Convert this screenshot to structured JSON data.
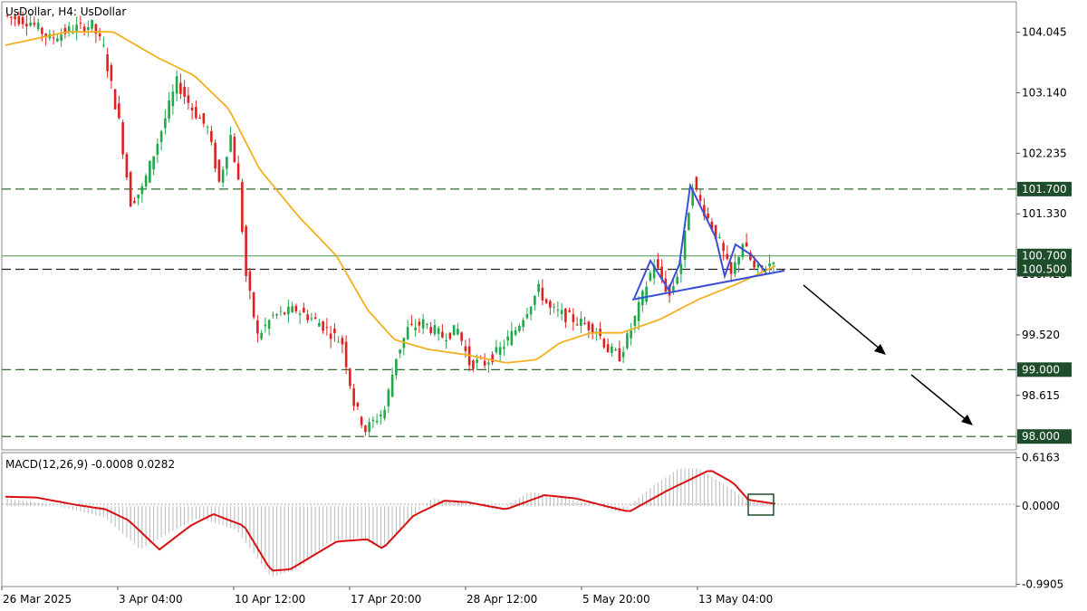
{
  "header": {
    "title": "UsDollar, H4:  UsDollar"
  },
  "macd_header": "MACD(12,26,9) -0.0008 0.0282",
  "colors": {
    "up_candle": "#1fa84a",
    "down_candle": "#e02020",
    "ma_line": "#f2b01e",
    "macd_line": "#d81010",
    "hist": "#b8b8b8",
    "level_line": "#2e6b2e",
    "badge": "#1d4d2a",
    "pattern": "#3a4fd8",
    "arrow": "#000000"
  },
  "chart_data": [
    {
      "type": "candlestick",
      "title": "UsDollar, H4:  UsDollar",
      "y_ticks": [
        "104.045",
        "103.140",
        "102.235",
        "101.330",
        "100.425",
        "99.520",
        "98.615"
      ],
      "ylim": [
        97.8,
        104.5
      ],
      "x_ticks": [
        "26 Mar 2025",
        "3 Apr 04:00",
        "10 Apr 12:00",
        "17 Apr 20:00",
        "28 Apr 12:00",
        "5 May 20:00",
        "13 May 04:00"
      ],
      "price_path": [
        {
          "t": 0.0,
          "v": 104.3
        },
        {
          "t": 0.035,
          "v": 104.2
        },
        {
          "t": 0.06,
          "v": 103.95
        },
        {
          "t": 0.09,
          "v": 104.1
        },
        {
          "t": 0.115,
          "v": 104.15
        },
        {
          "t": 0.13,
          "v": 103.8
        },
        {
          "t": 0.15,
          "v": 102.7
        },
        {
          "t": 0.165,
          "v": 101.5
        },
        {
          "t": 0.18,
          "v": 101.7
        },
        {
          "t": 0.2,
          "v": 102.4
        },
        {
          "t": 0.225,
          "v": 103.3
        },
        {
          "t": 0.245,
          "v": 102.9
        },
        {
          "t": 0.265,
          "v": 102.6
        },
        {
          "t": 0.28,
          "v": 101.8
        },
        {
          "t": 0.295,
          "v": 102.5
        },
        {
          "t": 0.305,
          "v": 101.8
        },
        {
          "t": 0.315,
          "v": 100.4
        },
        {
          "t": 0.33,
          "v": 99.5
        },
        {
          "t": 0.35,
          "v": 99.8
        },
        {
          "t": 0.38,
          "v": 99.9
        },
        {
          "t": 0.41,
          "v": 99.7
        },
        {
          "t": 0.44,
          "v": 99.4
        },
        {
          "t": 0.455,
          "v": 98.5
        },
        {
          "t": 0.47,
          "v": 98.1
        },
        {
          "t": 0.495,
          "v": 98.4
        },
        {
          "t": 0.51,
          "v": 99.2
        },
        {
          "t": 0.525,
          "v": 99.6
        },
        {
          "t": 0.545,
          "v": 99.7
        },
        {
          "t": 0.57,
          "v": 99.5
        },
        {
          "t": 0.59,
          "v": 99.6
        },
        {
          "t": 0.605,
          "v": 99.1
        },
        {
          "t": 0.625,
          "v": 99.1
        },
        {
          "t": 0.645,
          "v": 99.3
        },
        {
          "t": 0.665,
          "v": 99.6
        },
        {
          "t": 0.68,
          "v": 99.9
        },
        {
          "t": 0.695,
          "v": 100.2
        },
        {
          "t": 0.71,
          "v": 99.9
        },
        {
          "t": 0.73,
          "v": 99.8
        },
        {
          "t": 0.75,
          "v": 99.7
        },
        {
          "t": 0.77,
          "v": 99.6
        },
        {
          "t": 0.785,
          "v": 99.3
        },
        {
          "t": 0.8,
          "v": 99.2
        },
        {
          "t": 0.815,
          "v": 99.6
        },
        {
          "t": 0.83,
          "v": 100.1
        },
        {
          "t": 0.845,
          "v": 100.6
        },
        {
          "t": 0.865,
          "v": 100.1
        },
        {
          "t": 0.88,
          "v": 100.6
        },
        {
          "t": 0.895,
          "v": 101.8
        },
        {
          "t": 0.905,
          "v": 101.5
        },
        {
          "t": 0.93,
          "v": 100.9
        },
        {
          "t": 0.945,
          "v": 100.4
        },
        {
          "t": 0.96,
          "v": 100.9
        },
        {
          "t": 0.975,
          "v": 100.5
        },
        {
          "t": 0.99,
          "v": 100.5
        },
        {
          "t": 1.0,
          "v": 100.68
        }
      ],
      "ma_path": [
        {
          "t": 0.0,
          "v": 103.85
        },
        {
          "t": 0.08,
          "v": 104.05
        },
        {
          "t": 0.14,
          "v": 104.05
        },
        {
          "t": 0.2,
          "v": 103.65
        },
        {
          "t": 0.245,
          "v": 103.4
        },
        {
          "t": 0.29,
          "v": 102.9
        },
        {
          "t": 0.33,
          "v": 102.0
        },
        {
          "t": 0.38,
          "v": 101.3
        },
        {
          "t": 0.43,
          "v": 100.7
        },
        {
          "t": 0.47,
          "v": 99.9
        },
        {
          "t": 0.505,
          "v": 99.45
        },
        {
          "t": 0.55,
          "v": 99.3
        },
        {
          "t": 0.6,
          "v": 99.22
        },
        {
          "t": 0.65,
          "v": 99.1
        },
        {
          "t": 0.69,
          "v": 99.15
        },
        {
          "t": 0.72,
          "v": 99.4
        },
        {
          "t": 0.76,
          "v": 99.55
        },
        {
          "t": 0.8,
          "v": 99.55
        },
        {
          "t": 0.85,
          "v": 99.75
        },
        {
          "t": 0.9,
          "v": 100.05
        },
        {
          "t": 0.95,
          "v": 100.28
        },
        {
          "t": 1.0,
          "v": 100.55
        }
      ],
      "levels": [
        {
          "value": 101.7,
          "label": "101.700",
          "style": "dashed"
        },
        {
          "value": 100.7,
          "label": "100.700",
          "style": "solid"
        },
        {
          "value": 100.5,
          "label": "100.500",
          "style": "dashed-dark"
        },
        {
          "value": 99.0,
          "label": "99.000",
          "style": "dashed"
        },
        {
          "value": 98.0,
          "label": "98.000",
          "style": "dashed"
        }
      ],
      "annotations": {
        "pattern": "head-and-shoulders with rising neckline",
        "arrows": "two downward arrows (projected decline)"
      }
    },
    {
      "type": "histogram+line",
      "title": "MACD(12,26,9) -0.0008 0.0282",
      "y_ticks": [
        "0.6163",
        "0.0000",
        "-0.9905"
      ],
      "ylim": [
        -1.02,
        0.68
      ],
      "macd_hist_path": [
        {
          "t": 0.0,
          "v": 0.1
        },
        {
          "t": 0.04,
          "v": 0.05
        },
        {
          "t": 0.09,
          "v": -0.05
        },
        {
          "t": 0.13,
          "v": -0.15
        },
        {
          "t": 0.175,
          "v": -0.55
        },
        {
          "t": 0.21,
          "v": -0.35
        },
        {
          "t": 0.25,
          "v": -0.15
        },
        {
          "t": 0.3,
          "v": -0.3
        },
        {
          "t": 0.345,
          "v": -0.9
        },
        {
          "t": 0.38,
          "v": -0.8
        },
        {
          "t": 0.42,
          "v": -0.45
        },
        {
          "t": 0.46,
          "v": -0.4
        },
        {
          "t": 0.49,
          "v": -0.55
        },
        {
          "t": 0.52,
          "v": -0.2
        },
        {
          "t": 0.555,
          "v": 0.1
        },
        {
          "t": 0.59,
          "v": 0.05
        },
        {
          "t": 0.64,
          "v": -0.05
        },
        {
          "t": 0.68,
          "v": 0.18
        },
        {
          "t": 0.72,
          "v": 0.12
        },
        {
          "t": 0.76,
          "v": 0.02
        },
        {
          "t": 0.8,
          "v": -0.08
        },
        {
          "t": 0.84,
          "v": 0.25
        },
        {
          "t": 0.875,
          "v": 0.48
        },
        {
          "t": 0.9,
          "v": 0.48
        },
        {
          "t": 0.93,
          "v": 0.3
        },
        {
          "t": 0.96,
          "v": 0.1
        },
        {
          "t": 1.0,
          "v": 0.0
        }
      ],
      "macd_signal_path": [
        {
          "t": 0.0,
          "v": 0.12
        },
        {
          "t": 0.04,
          "v": 0.11
        },
        {
          "t": 0.09,
          "v": 0.02
        },
        {
          "t": 0.13,
          "v": -0.04
        },
        {
          "t": 0.16,
          "v": -0.18
        },
        {
          "t": 0.2,
          "v": -0.55
        },
        {
          "t": 0.24,
          "v": -0.25
        },
        {
          "t": 0.27,
          "v": -0.1
        },
        {
          "t": 0.31,
          "v": -0.25
        },
        {
          "t": 0.345,
          "v": -0.82
        },
        {
          "t": 0.37,
          "v": -0.8
        },
        {
          "t": 0.43,
          "v": -0.45
        },
        {
          "t": 0.47,
          "v": -0.42
        },
        {
          "t": 0.49,
          "v": -0.54
        },
        {
          "t": 0.53,
          "v": -0.12
        },
        {
          "t": 0.57,
          "v": 0.07
        },
        {
          "t": 0.6,
          "v": 0.05
        },
        {
          "t": 0.65,
          "v": -0.04
        },
        {
          "t": 0.7,
          "v": 0.14
        },
        {
          "t": 0.74,
          "v": 0.1
        },
        {
          "t": 0.78,
          "v": 0.0
        },
        {
          "t": 0.81,
          "v": -0.07
        },
        {
          "t": 0.86,
          "v": 0.2
        },
        {
          "t": 0.915,
          "v": 0.46
        },
        {
          "t": 0.945,
          "v": 0.3
        },
        {
          "t": 0.965,
          "v": 0.08
        },
        {
          "t": 1.0,
          "v": 0.03
        }
      ]
    }
  ]
}
